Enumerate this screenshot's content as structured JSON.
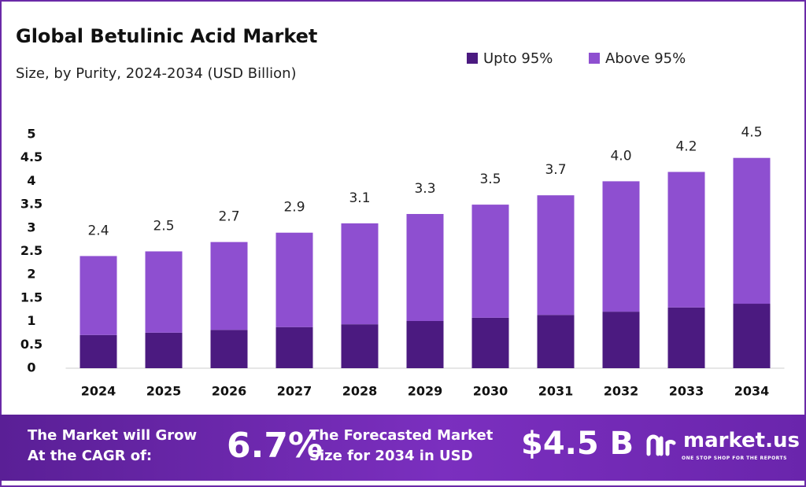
{
  "chart_data": {
    "type": "stacked_bar",
    "title": "Global Betulinic Acid Market",
    "subtitle": "Size, by Purity, 2024-2034 (USD Billion)",
    "categories": [
      "2024",
      "2025",
      "2026",
      "2027",
      "2028",
      "2029",
      "2030",
      "2031",
      "2032",
      "2033",
      "2034"
    ],
    "series": [
      {
        "name": "Upto 95%",
        "color": "#4b1a80",
        "values": [
          0.71,
          0.76,
          0.82,
          0.88,
          0.94,
          1.01,
          1.08,
          1.14,
          1.21,
          1.3,
          1.38
        ]
      },
      {
        "name": "Above 95%",
        "color": "#8e4fd0",
        "values": [
          1.69,
          1.74,
          1.88,
          2.02,
          2.16,
          2.29,
          2.42,
          2.56,
          2.79,
          2.9,
          3.12
        ]
      }
    ],
    "totals": [
      2.4,
      2.5,
      2.7,
      2.9,
      3.1,
      3.3,
      3.5,
      3.7,
      4.0,
      4.2,
      4.5
    ],
    "value_labels": [
      "2.4",
      "2.5",
      "2.7",
      "2.9",
      "3.1",
      "3.3",
      "3.5",
      "3.7",
      "4.0",
      "4.2",
      "4.5"
    ],
    "ylim": [
      0,
      5
    ],
    "yticks": [
      0,
      0.5,
      1,
      1.5,
      2,
      2.5,
      3,
      3.5,
      4,
      4.5,
      5
    ],
    "grid": false,
    "legend": "top-right"
  },
  "footer": {
    "cagr_label": "The Market will Grow At the CAGR of:",
    "cagr_value": "6.7%",
    "forecast_label": "The Forecasted Market Size for 2034 in USD",
    "forecast_value": "$4.5 B",
    "brand": "market.us",
    "tagline": "ONE STOP SHOP FOR THE REPORTS"
  }
}
